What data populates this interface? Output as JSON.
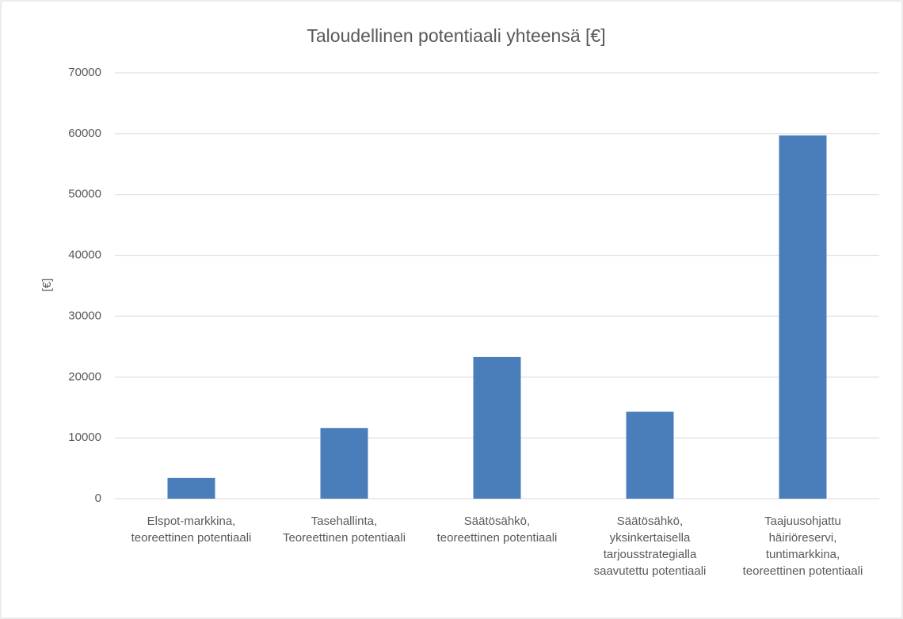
{
  "chart_data": {
    "type": "bar",
    "title": "Taloudellinen potentiaali yhteensä [€]",
    "y_label": "[€]",
    "categories": [
      "Elspot-markkina, teoreettinen potentiaali",
      "Tasehallinta, Teoreettinen potentiaali",
      "Säätösähkö, teoreettinen potentiaali",
      "Säätösähkö, yksinkertaisella tarjousstrategialla saavutettu potentiaali",
      "Taajuusohjattu häiriöreservi, tuntimarkkina, teoreettinen potentiaali"
    ],
    "values": [
      3400,
      11600,
      23300,
      14300,
      59700
    ],
    "color": "#4a7ebb",
    "ylim": [
      0,
      70000
    ],
    "yticks": [
      0,
      10000,
      20000,
      30000,
      40000,
      50000,
      60000,
      70000
    ],
    "grid": true
  }
}
